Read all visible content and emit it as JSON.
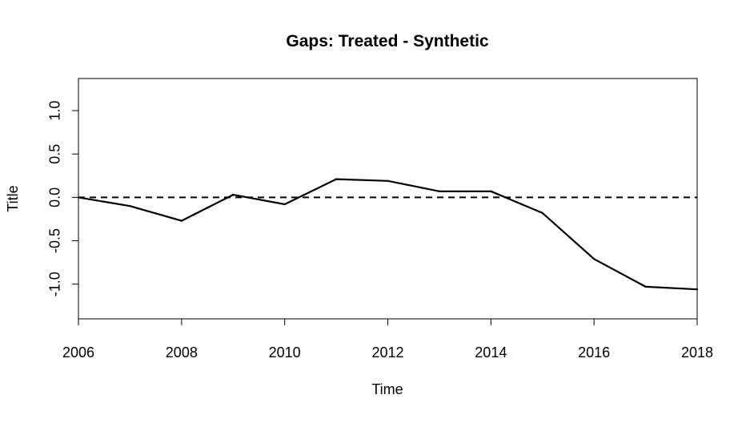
{
  "chart_data": {
    "type": "line",
    "title": "Gaps: Treated - Synthetic",
    "xlabel": "Time",
    "ylabel": "Title",
    "xlim": [
      2006,
      2018
    ],
    "ylim": [
      -1.4,
      1.37
    ],
    "x_ticks": [
      2006,
      2008,
      2010,
      2012,
      2014,
      2016,
      2018
    ],
    "x_tick_labels": [
      "2006",
      "2008",
      "2010",
      "2012",
      "2014",
      "2016",
      "2018"
    ],
    "y_ticks": [
      -1.0,
      -0.5,
      0.0,
      0.5,
      1.0
    ],
    "y_tick_labels": [
      "-1.0",
      "-0.5",
      "0.0",
      "0.5",
      "1.0"
    ],
    "grid": false,
    "reference_line": {
      "y": 0,
      "style": "dashed"
    },
    "series": [
      {
        "x": [
          2006,
          2007,
          2008,
          2009,
          2010,
          2011,
          2012,
          2013,
          2014,
          2015,
          2016,
          2017,
          2018
        ],
        "y": [
          0.0,
          -0.1,
          -0.27,
          0.03,
          -0.08,
          0.21,
          0.19,
          0.07,
          0.07,
          -0.18,
          -0.71,
          -1.03,
          -1.06
        ]
      }
    ],
    "colors": {
      "line": "#000000",
      "axes": "#000000"
    }
  }
}
